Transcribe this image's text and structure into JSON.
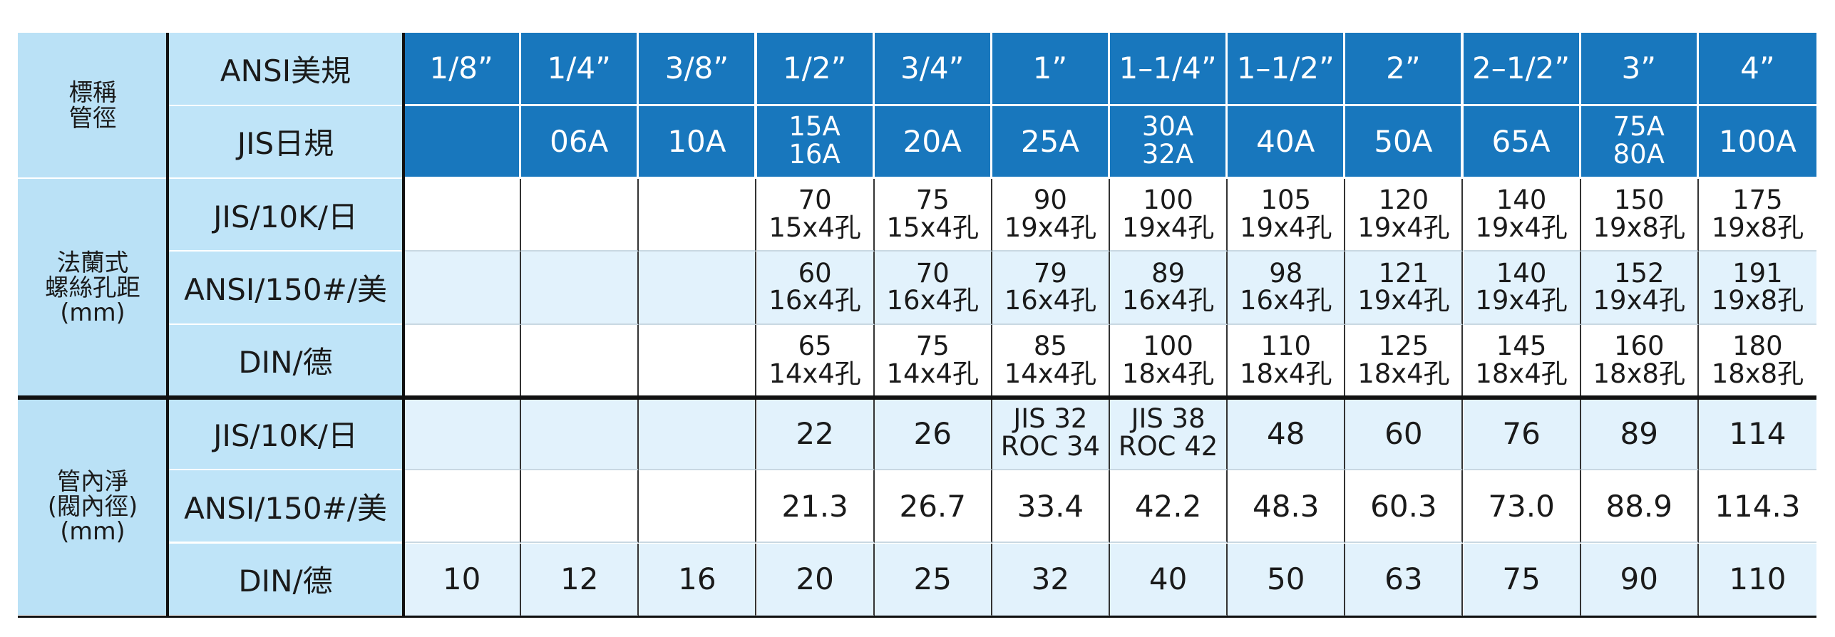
{
  "table": {
    "groups": [
      {
        "label": [
          "標稱",
          "管徑"
        ],
        "header": true,
        "rows": [
          {
            "label": "ANSI美規",
            "cells": [
              "1/8”",
              "1/4”",
              "3/8”",
              "1/2”",
              "3/4”",
              "1”",
              "1–1/4”",
              "1–1/2”",
              "2”",
              "2–1/2”",
              "3”",
              "4”"
            ]
          },
          {
            "label": "JIS日規",
            "cells": [
              null,
              "06A",
              "10A",
              [
                "15A",
                "16A"
              ],
              "20A",
              "25A",
              [
                "30A",
                "32A"
              ],
              "40A",
              "50A",
              "65A",
              [
                "75A",
                "80A"
              ],
              "100A"
            ]
          }
        ]
      },
      {
        "label": [
          "法蘭式",
          "螺絲孔距",
          "(mm)"
        ],
        "header": false,
        "rows": [
          {
            "label": "JIS/10K/日",
            "cells": [
              null,
              null,
              null,
              [
                "70",
                "15x4孔"
              ],
              [
                "75",
                "15x4孔"
              ],
              [
                "90",
                "19x4孔"
              ],
              [
                "100",
                "19x4孔"
              ],
              [
                "105",
                "19x4孔"
              ],
              [
                "120",
                "19x4孔"
              ],
              [
                "140",
                "19x4孔"
              ],
              [
                "150",
                "19x8孔"
              ],
              [
                "175",
                "19x8孔"
              ]
            ]
          },
          {
            "label": "ANSI/150#/美",
            "cells": [
              null,
              null,
              null,
              [
                "60",
                "16x4孔"
              ],
              [
                "70",
                "16x4孔"
              ],
              [
                "79",
                "16x4孔"
              ],
              [
                "89",
                "16x4孔"
              ],
              [
                "98",
                "16x4孔"
              ],
              [
                "121",
                "19x4孔"
              ],
              [
                "140",
                "19x4孔"
              ],
              [
                "152",
                "19x4孔"
              ],
              [
                "191",
                "19x8孔"
              ]
            ]
          },
          {
            "label": "DIN/德",
            "cells": [
              null,
              null,
              null,
              [
                "65",
                "14x4孔"
              ],
              [
                "75",
                "14x4孔"
              ],
              [
                "85",
                "14x4孔"
              ],
              [
                "100",
                "18x4孔"
              ],
              [
                "110",
                "18x4孔"
              ],
              [
                "125",
                "18x4孔"
              ],
              [
                "145",
                "18x4孔"
              ],
              [
                "160",
                "18x8孔"
              ],
              [
                "180",
                "18x8孔"
              ]
            ]
          }
        ]
      },
      {
        "label": [
          "管內淨",
          "(閥內徑)",
          "(mm)"
        ],
        "header": false,
        "rows": [
          {
            "label": "JIS/10K/日",
            "cells": [
              null,
              null,
              null,
              "22",
              "26",
              [
                "JIS 32",
                "ROC 34"
              ],
              [
                "JIS 38",
                "ROC 42"
              ],
              "48",
              "60",
              "76",
              "89",
              "114"
            ]
          },
          {
            "label": "ANSI/150#/美",
            "cells": [
              null,
              null,
              null,
              "21.3",
              "26.7",
              "33.4",
              "42.2",
              "48.3",
              "60.3",
              "73.0",
              "88.9",
              "114.3"
            ]
          },
          {
            "label": "DIN/德",
            "cells": [
              "10",
              "12",
              "16",
              "20",
              "25",
              "32",
              "40",
              "50",
              "63",
              "75",
              "90",
              "110"
            ]
          }
        ]
      }
    ]
  }
}
